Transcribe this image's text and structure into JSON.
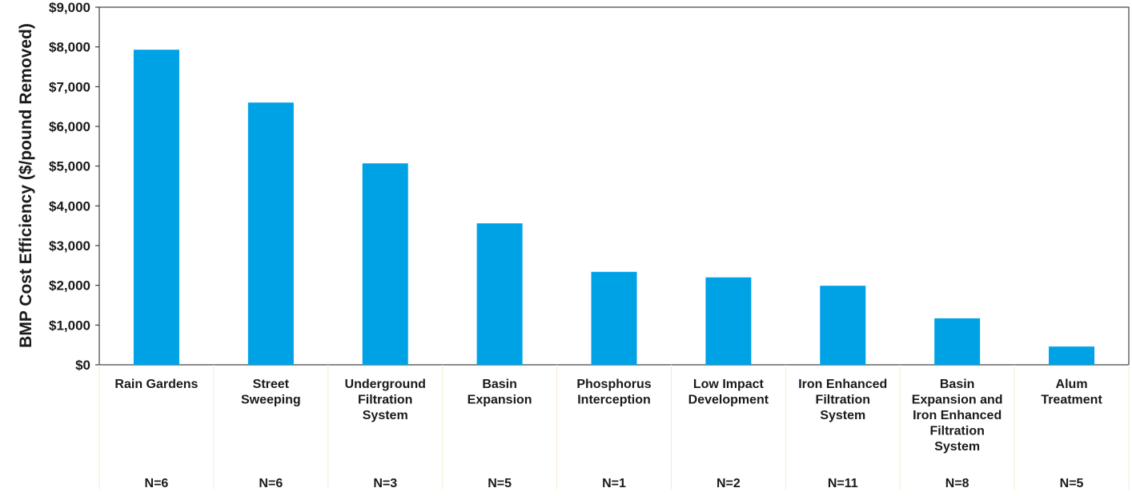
{
  "chart_data": {
    "type": "bar",
    "ylabel": "BMP Cost Efficiency ($/pound Removed)",
    "ylim": [
      0,
      9000
    ],
    "yticks": [
      "$0",
      "$1,000",
      "$2,000",
      "$3,000",
      "$4,000",
      "$5,000",
      "$6,000",
      "$7,000",
      "$8,000",
      "$9,000"
    ],
    "categories": [
      [
        "Rain Gardens"
      ],
      [
        "Street",
        "Sweeping"
      ],
      [
        "Underground",
        "Filtration",
        "System"
      ],
      [
        "Basin",
        "Expansion"
      ],
      [
        "Phosphorus",
        "Interception"
      ],
      [
        "Low Impact",
        "Development"
      ],
      [
        "Iron Enhanced",
        "Filtration",
        "System"
      ],
      [
        "Basin",
        "Expansion and",
        "Iron Enhanced",
        "Filtration",
        "System"
      ],
      [
        "Alum",
        "Treatment"
      ]
    ],
    "n_labels": [
      "N=6",
      "N=6",
      "N=3",
      "N=5",
      "N=1",
      "N=2",
      "N=11",
      "N=8",
      "N=5"
    ],
    "values": [
      7930,
      6600,
      5070,
      3560,
      2340,
      2200,
      1990,
      1170,
      460
    ],
    "bar_color": "#00a2e6",
    "grid": false
  }
}
